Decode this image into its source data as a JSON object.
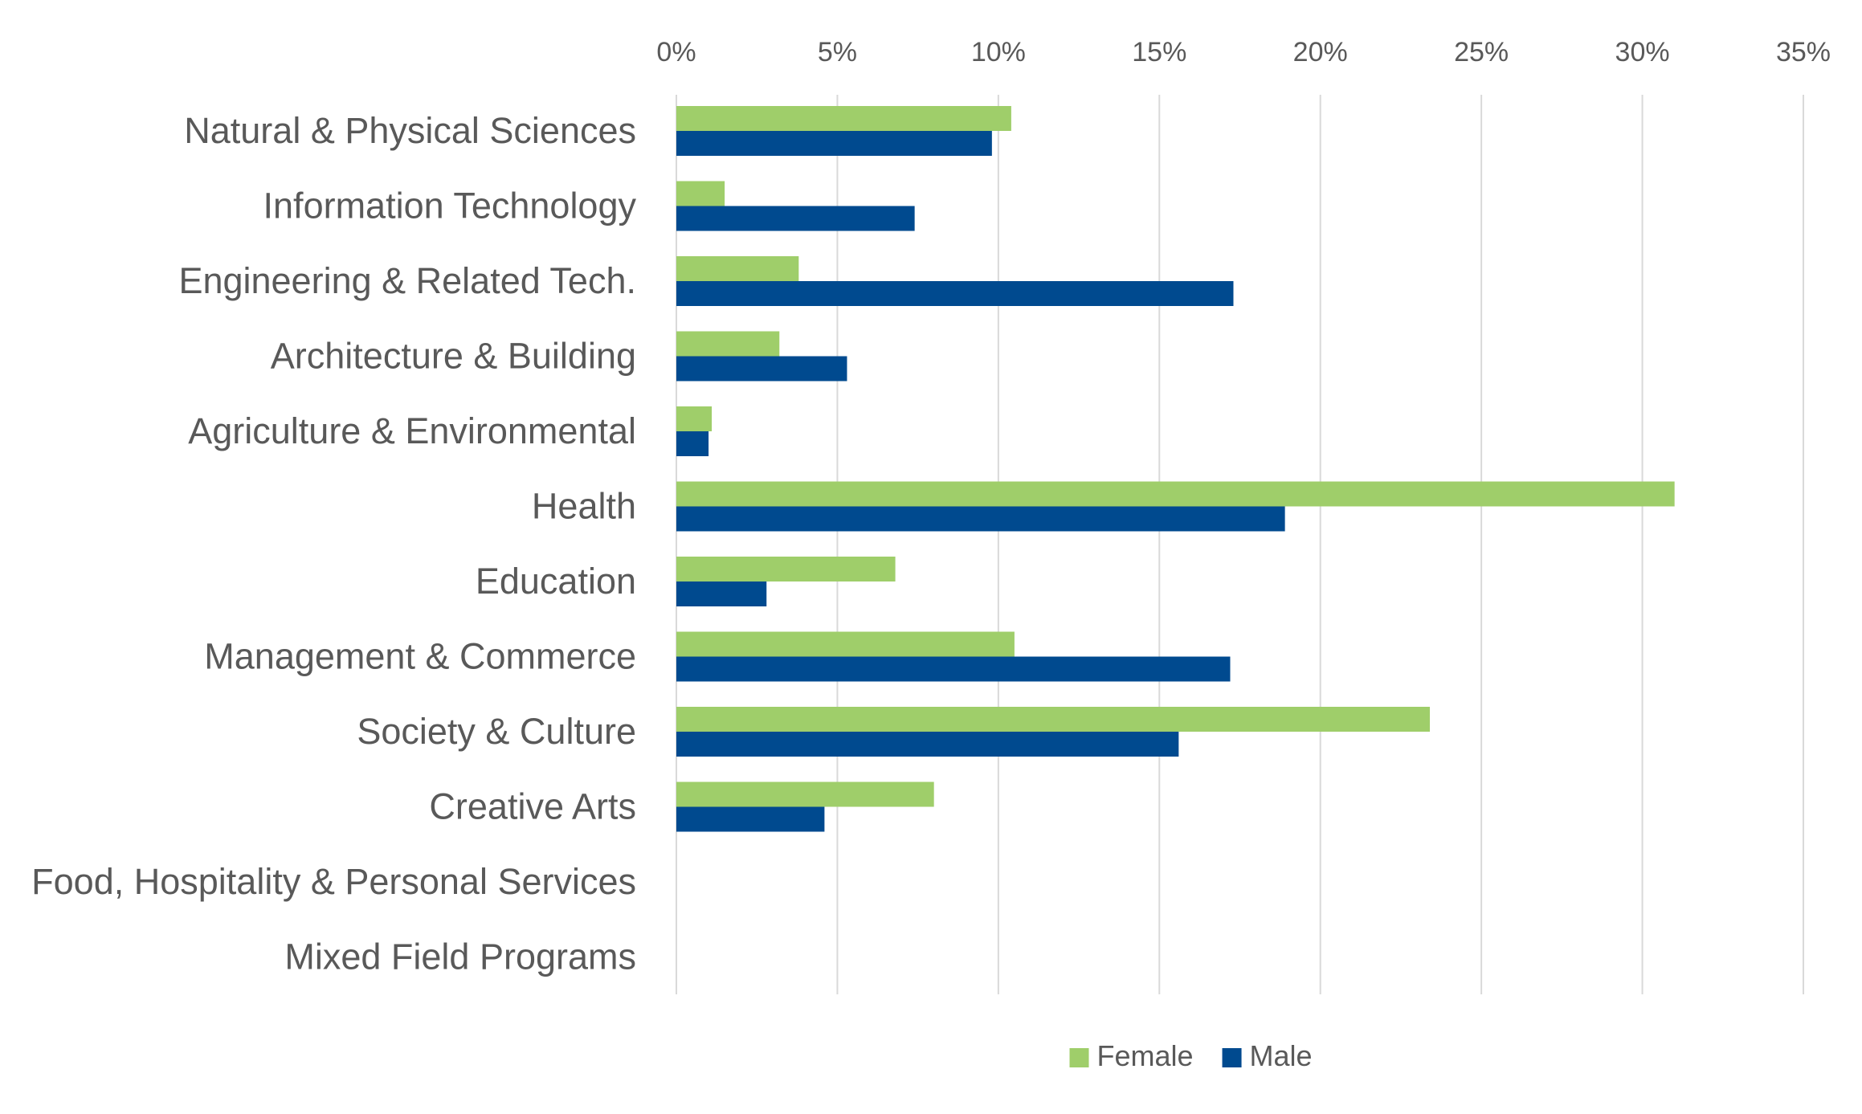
{
  "chart_data": {
    "type": "bar",
    "orientation": "horizontal",
    "title": "",
    "xlabel": "",
    "ylabel": "",
    "categories": [
      "Natural & Physical Sciences",
      "Information Technology",
      "Engineering & Related Tech.",
      "Architecture & Building",
      "Agriculture & Environmental",
      "Health",
      "Education",
      "Management & Commerce",
      "Society & Culture",
      "Creative Arts",
      "Food, Hospitality & Personal Services",
      "Mixed Field Programs"
    ],
    "series": [
      {
        "name": "Female",
        "color": "#9FCE6A",
        "values": [
          10.4,
          1.5,
          3.8,
          3.2,
          1.1,
          31.0,
          6.8,
          10.5,
          23.4,
          8.0,
          0,
          0
        ]
      },
      {
        "name": "Male",
        "color": "#004A8F",
        "values": [
          9.8,
          7.4,
          17.3,
          5.3,
          1.0,
          18.9,
          2.8,
          17.2,
          15.6,
          4.6,
          0,
          0
        ]
      }
    ],
    "xlim": [
      0,
      35
    ],
    "xticks": [
      0,
      5,
      10,
      15,
      20,
      25,
      30,
      35
    ],
    "xtick_labels": [
      "0%",
      "5%",
      "10%",
      "15%",
      "20%",
      "25%",
      "30%",
      "35%"
    ],
    "x_axis_position": "top",
    "grid": true,
    "legend_position": "bottom-center"
  }
}
